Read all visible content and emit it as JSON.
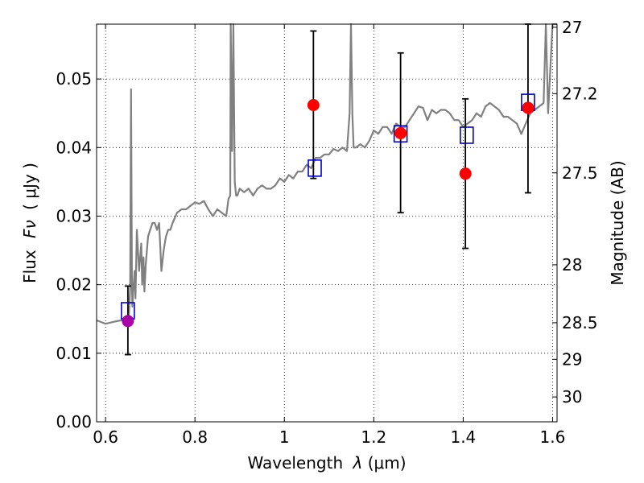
{
  "chart_data": {
    "type": "scatter",
    "xlabel_prefix": "Wavelength",
    "xlabel_var": "λ",
    "xlabel_unit": "(μm)",
    "ylabel_prefix": "Flux",
    "ylabel_var": "Fν",
    "ylabel_unit": "( μJy )",
    "y2label": "Magnitude (AB)",
    "xlim": [
      0.58,
      1.61
    ],
    "ylim": [
      0.0,
      0.058
    ],
    "xticks": [
      0.6,
      0.8,
      1.0,
      1.2,
      1.4,
      1.6
    ],
    "xtick_labels": [
      "0.6",
      "0.8",
      "1",
      "1.2",
      "1.4",
      "1.6"
    ],
    "yticks": [
      0.0,
      0.01,
      0.02,
      0.03,
      0.04,
      0.05
    ],
    "ytick_labels": [
      "0.00",
      "0.01",
      "0.02",
      "0.03",
      "0.04",
      "0.05"
    ],
    "y2ticks": [
      27,
      27.2,
      27.5,
      28,
      28.5,
      29,
      30
    ],
    "y2tick_labels": [
      "27",
      "27.2",
      "27.5",
      "28",
      "28.5",
      "29",
      "30"
    ],
    "grid": true,
    "colors": {
      "model": "#808080",
      "observed": "#ff0000",
      "synthetic": "#0000cc",
      "observed_highlight": "#aa00aa",
      "errorbar": "#000000"
    },
    "series": [
      {
        "name": "model-spectrum",
        "kind": "line",
        "x": [
          0.58,
          0.6,
          0.62,
          0.635,
          0.645,
          0.652,
          0.655,
          0.657,
          0.659,
          0.66,
          0.662,
          0.665,
          0.667,
          0.67,
          0.675,
          0.68,
          0.682,
          0.685,
          0.687,
          0.69,
          0.695,
          0.7,
          0.705,
          0.71,
          0.715,
          0.72,
          0.725,
          0.73,
          0.735,
          0.74,
          0.745,
          0.75,
          0.76,
          0.77,
          0.78,
          0.79,
          0.8,
          0.81,
          0.82,
          0.83,
          0.84,
          0.85,
          0.86,
          0.87,
          0.875,
          0.879,
          0.88,
          0.883,
          0.886,
          0.889,
          0.892,
          0.895,
          0.9,
          0.91,
          0.92,
          0.93,
          0.94,
          0.95,
          0.96,
          0.97,
          0.98,
          0.99,
          1.0,
          1.01,
          1.02,
          1.03,
          1.04,
          1.05,
          1.06,
          1.07,
          1.08,
          1.09,
          1.1,
          1.11,
          1.12,
          1.13,
          1.14,
          1.146,
          1.149,
          1.152,
          1.155,
          1.16,
          1.17,
          1.18,
          1.19,
          1.2,
          1.21,
          1.22,
          1.23,
          1.24,
          1.25,
          1.26,
          1.27,
          1.28,
          1.29,
          1.3,
          1.31,
          1.32,
          1.33,
          1.34,
          1.35,
          1.36,
          1.37,
          1.38,
          1.39,
          1.4,
          1.41,
          1.42,
          1.43,
          1.44,
          1.45,
          1.46,
          1.47,
          1.48,
          1.49,
          1.5,
          1.51,
          1.52,
          1.53,
          1.54,
          1.55,
          1.56,
          1.57,
          1.58,
          1.585,
          1.59,
          1.6,
          1.61
        ],
        "y": [
          0.0148,
          0.0143,
          0.0146,
          0.0148,
          0.0148,
          0.0152,
          0.0195,
          0.0485,
          0.0205,
          0.0168,
          0.019,
          0.022,
          0.018,
          0.028,
          0.022,
          0.026,
          0.02,
          0.024,
          0.019,
          0.023,
          0.027,
          0.028,
          0.029,
          0.029,
          0.028,
          0.029,
          0.022,
          0.025,
          0.027,
          0.028,
          0.028,
          0.029,
          0.0305,
          0.031,
          0.031,
          0.0315,
          0.032,
          0.0318,
          0.0322,
          0.031,
          0.03,
          0.031,
          0.0305,
          0.03,
          0.0325,
          0.033,
          0.058,
          0.0395,
          0.058,
          0.035,
          0.033,
          0.033,
          0.034,
          0.0335,
          0.034,
          0.033,
          0.034,
          0.0345,
          0.034,
          0.034,
          0.0345,
          0.0355,
          0.035,
          0.036,
          0.0355,
          0.0365,
          0.0365,
          0.0375,
          0.037,
          0.0385,
          0.0385,
          0.039,
          0.039,
          0.0398,
          0.0395,
          0.04,
          0.0395,
          0.045,
          0.058,
          0.045,
          0.04,
          0.04,
          0.0405,
          0.04,
          0.041,
          0.0425,
          0.042,
          0.043,
          0.043,
          0.042,
          0.0435,
          0.043,
          0.043,
          0.044,
          0.045,
          0.046,
          0.0458,
          0.044,
          0.0455,
          0.045,
          0.0455,
          0.0455,
          0.045,
          0.044,
          0.044,
          0.043,
          0.0435,
          0.044,
          0.045,
          0.0445,
          0.046,
          0.0465,
          0.046,
          0.0455,
          0.0445,
          0.0445,
          0.044,
          0.0435,
          0.042,
          0.0435,
          0.045,
          0.0455,
          0.046,
          0.0465,
          0.058,
          0.045,
          0.058,
          0.058
        ]
      },
      {
        "name": "observed-flux",
        "kind": "points-with-errorbars",
        "x": [
          0.65,
          1.065,
          1.26,
          1.405,
          1.545
        ],
        "y": [
          0.0147,
          0.0462,
          0.0421,
          0.0362,
          0.0458
        ],
        "yerr_low": [
          0.0098,
          0.0355,
          0.0305,
          0.0253,
          0.0334
        ],
        "yerr_high": [
          0.0198,
          0.057,
          0.0538,
          0.0471,
          0.0585
        ]
      },
      {
        "name": "synthetic-flux",
        "kind": "squares",
        "x": [
          0.65,
          1.068,
          1.26,
          1.408,
          1.545
        ],
        "y": [
          0.0162,
          0.037,
          0.042,
          0.0418,
          0.0466
        ]
      }
    ]
  }
}
